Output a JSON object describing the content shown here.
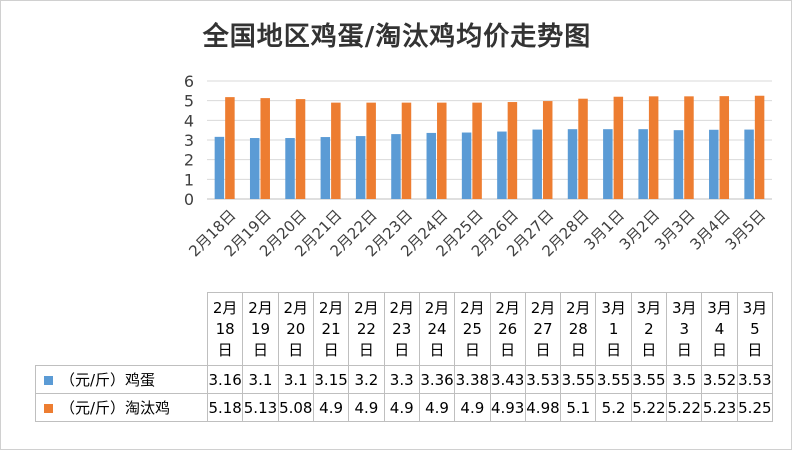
{
  "chart_data": {
    "type": "bar",
    "title": "全国地区鸡蛋/淘汰鸡均价走势图",
    "categories": [
      "2月18日",
      "2月19日",
      "2月20日",
      "2月21日",
      "2月22日",
      "2月23日",
      "2月24日",
      "2月25日",
      "2月26日",
      "2月27日",
      "2月28日",
      "3月1日",
      "3月2日",
      "3月3日",
      "3月4日",
      "3月5日"
    ],
    "series": [
      {
        "name": "（元/斤）鸡蛋",
        "color": "#5b9bd5",
        "values": [
          3.16,
          3.1,
          3.1,
          3.15,
          3.2,
          3.3,
          3.36,
          3.38,
          3.43,
          3.53,
          3.55,
          3.55,
          3.55,
          3.5,
          3.52,
          3.53
        ]
      },
      {
        "name": "（元/斤）淘汰鸡",
        "color": "#ed7d31",
        "values": [
          5.18,
          5.13,
          5.08,
          4.9,
          4.9,
          4.9,
          4.9,
          4.9,
          4.93,
          4.98,
          5.1,
          5.2,
          5.22,
          5.22,
          5.23,
          5.25
        ]
      }
    ],
    "ylim": [
      0,
      6
    ],
    "yticks": [
      0,
      1,
      2,
      3,
      4,
      5,
      6
    ],
    "grid": true,
    "legend": "data-table"
  }
}
